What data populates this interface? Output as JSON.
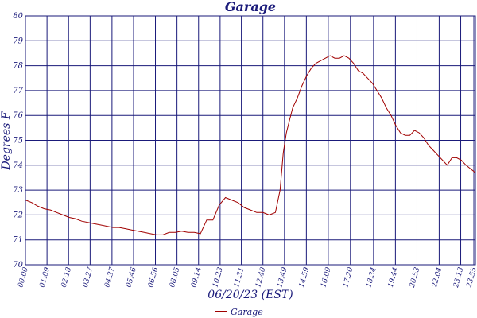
{
  "chart_data": {
    "type": "line",
    "title": "Garage",
    "xlabel": "06/20/23 (EST)",
    "ylabel": "Degrees F",
    "ylim": [
      70,
      80
    ],
    "yticks": [
      "70",
      "71",
      "72",
      "73",
      "74",
      "75",
      "76",
      "77",
      "78",
      "79",
      "80"
    ],
    "xtick_labels": [
      "00:00",
      "01:09",
      "02:18",
      "03:27",
      "04:37",
      "05:46",
      "06:56",
      "08:05",
      "09:14",
      "10:23",
      "11:31",
      "12:40",
      "13:49",
      "14:59",
      "16:09",
      "17:20",
      "18:34",
      "19:44",
      "20:53",
      "22:04",
      "23:13",
      "23:55"
    ],
    "xtick_minutes": [
      0,
      69,
      138,
      207,
      277,
      346,
      416,
      485,
      554,
      623,
      691,
      760,
      829,
      899,
      969,
      1040,
      1114,
      1184,
      1253,
      1324,
      1393,
      1435
    ],
    "xlim_minutes": [
      0,
      1440
    ],
    "grid": true,
    "legend_position": "bottom-center",
    "series": [
      {
        "name": "Garage",
        "color": "#a00000",
        "x_minutes": [
          0,
          20,
          40,
          60,
          80,
          100,
          120,
          140,
          160,
          180,
          200,
          220,
          240,
          260,
          280,
          300,
          320,
          340,
          360,
          380,
          400,
          420,
          440,
          460,
          480,
          500,
          520,
          540,
          560,
          580,
          600,
          620,
          640,
          660,
          680,
          700,
          720,
          740,
          760,
          780,
          800,
          815,
          825,
          835,
          845,
          855,
          870,
          885,
          900,
          915,
          930,
          945,
          960,
          975,
          990,
          1005,
          1020,
          1035,
          1050,
          1065,
          1080,
          1095,
          1110,
          1125,
          1140,
          1155,
          1170,
          1185,
          1200,
          1215,
          1230,
          1245,
          1260,
          1275,
          1290,
          1305,
          1320,
          1335,
          1350,
          1365,
          1380,
          1395,
          1410,
          1425,
          1440
        ],
        "values": [
          72.6,
          72.5,
          72.35,
          72.25,
          72.2,
          72.1,
          72.0,
          71.9,
          71.85,
          71.75,
          71.7,
          71.65,
          71.6,
          71.55,
          71.5,
          71.5,
          71.45,
          71.4,
          71.35,
          71.3,
          71.25,
          71.2,
          71.2,
          71.3,
          71.3,
          71.35,
          71.3,
          71.3,
          71.25,
          71.8,
          71.8,
          72.4,
          72.7,
          72.6,
          72.5,
          72.3,
          72.2,
          72.1,
          72.1,
          72.0,
          72.1,
          73.0,
          74.5,
          75.3,
          75.8,
          76.3,
          76.7,
          77.2,
          77.6,
          77.9,
          78.1,
          78.2,
          78.3,
          78.4,
          78.3,
          78.3,
          78.4,
          78.3,
          78.1,
          77.8,
          77.7,
          77.5,
          77.3,
          77.0,
          76.7,
          76.3,
          76.0,
          75.6,
          75.3,
          75.2,
          75.2,
          75.4,
          75.3,
          75.1,
          74.8,
          74.6,
          74.4,
          74.2,
          74.0,
          74.3,
          74.3,
          74.2,
          74.0,
          73.85,
          73.7
        ]
      }
    ]
  }
}
